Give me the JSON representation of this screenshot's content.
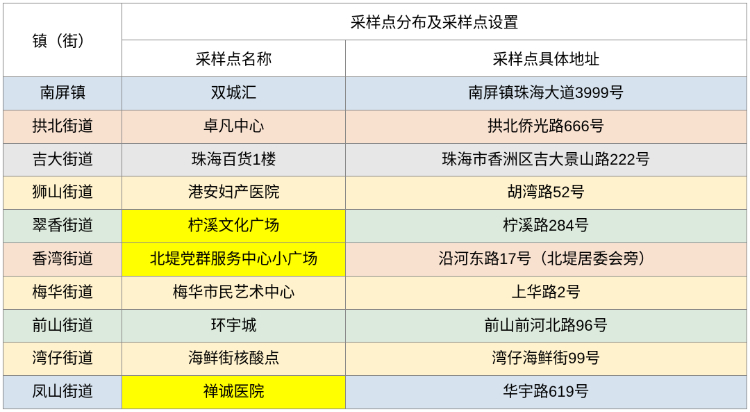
{
  "headers": {
    "district": "镇（街）",
    "group": "采样点分布及采样点设置",
    "name": "采样点名称",
    "address": "采样点具体地址"
  },
  "row_colors": {
    "blue": "#d6e3ef",
    "orange": "#f9e1d0",
    "grey": "#e7e7e7",
    "yellowL": "#fff2cc",
    "green": "#dbeadc",
    "yellow": "#ffff00"
  },
  "rows": [
    {
      "district": "南屏镇",
      "name": "双城汇",
      "address": "南屏镇珠海大道3999号",
      "bg": [
        "blue",
        "blue",
        "blue"
      ]
    },
    {
      "district": "拱北街道",
      "name": "卓凡中心",
      "address": "拱北侨光路666号",
      "bg": [
        "orange",
        "orange",
        "orange"
      ]
    },
    {
      "district": "吉大街道",
      "name": "珠海百货1楼",
      "address": "珠海市香洲区吉大景山路222号",
      "bg": [
        "grey",
        "grey",
        "grey"
      ]
    },
    {
      "district": "狮山街道",
      "name": "港安妇产医院",
      "address": "胡湾路52号",
      "bg": [
        "yellowL",
        "yellowL",
        "yellowL"
      ]
    },
    {
      "district": "翠香街道",
      "name": "柠溪文化广场",
      "address": "柠溪路284号",
      "bg": [
        "green",
        "yellow",
        "green"
      ]
    },
    {
      "district": "香湾街道",
      "name": "北堤党群服务中心小广场",
      "address": "沿河东路17号（北堤居委会旁）",
      "bg": [
        "orange",
        "yellow",
        "orange"
      ]
    },
    {
      "district": "梅华街道",
      "name": "梅华市民艺术中心",
      "address": "上华路2号",
      "bg": [
        "yellowL",
        "yellowL",
        "yellowL"
      ]
    },
    {
      "district": "前山街道",
      "name": "环宇城",
      "address": "前山前河北路96号",
      "bg": [
        "green",
        "green",
        "green"
      ]
    },
    {
      "district": "湾仔街道",
      "name": "海鲜街核酸点",
      "address": "湾仔海鲜街99号",
      "bg": [
        "yellowL",
        "yellowL",
        "yellowL"
      ]
    },
    {
      "district": "凤山街道",
      "name": "禅诚医院",
      "address": "华宇路619号",
      "bg": [
        "blue",
        "yellow",
        "blue"
      ]
    }
  ]
}
